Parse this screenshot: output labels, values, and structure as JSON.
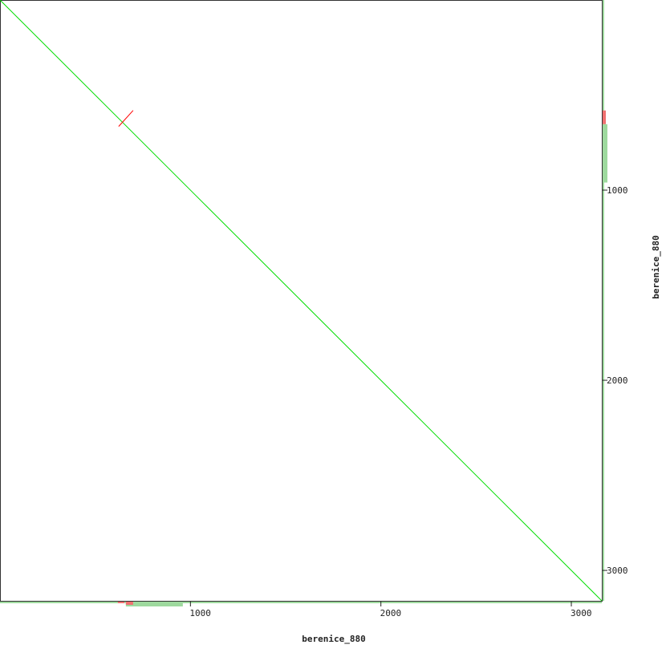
{
  "chart_data": {
    "type": "line",
    "xlabel": "berenice_880",
    "ylabel": "berenice_880",
    "xlim": [
      0,
      3160
    ],
    "ylim": [
      0,
      3160
    ],
    "y_inverted": true,
    "xticks": [
      1000,
      2000,
      3000
    ],
    "yticks": [
      1000,
      2000,
      3000
    ],
    "xtick_labels": [
      "1000",
      "2000",
      "3000"
    ],
    "ytick_labels": [
      "1000",
      "2000",
      "3000"
    ],
    "grid": false,
    "series": [
      {
        "color": "#00dd00",
        "x": [
          0,
          3160
        ],
        "y": [
          0,
          3160
        ]
      },
      {
        "color": "#ff0000",
        "x": [
          623,
          699
        ],
        "y": [
          665,
          581
        ]
      }
    ],
    "x_coverage": [
      {
        "color": "#9ed99e",
        "from": 0,
        "to": 3160,
        "level": 1
      },
      {
        "color": "#9ed99e",
        "from": 661,
        "to": 960,
        "level": 3
      },
      {
        "color": "#f07070",
        "from": 619,
        "to": 653,
        "level": 1
      },
      {
        "color": "#f07070",
        "from": 661,
        "to": 699,
        "level": 2
      }
    ],
    "y_coverage": [
      {
        "color": "#9ed99e",
        "from": 0,
        "to": 3160,
        "level": 1
      },
      {
        "color": "#9ed99e",
        "from": 653,
        "to": 960,
        "level": 3
      },
      {
        "color": "#f07070",
        "from": 581,
        "to": 653,
        "level": 2
      }
    ]
  }
}
